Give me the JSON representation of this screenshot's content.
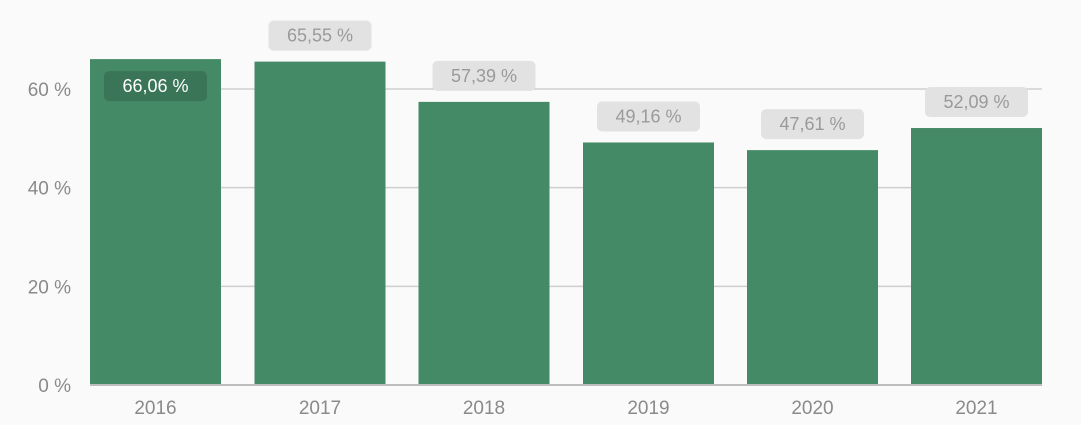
{
  "chart_data": {
    "type": "bar",
    "title": "",
    "xlabel": "",
    "ylabel": "",
    "categories": [
      "2016",
      "2017",
      "2018",
      "2019",
      "2020",
      "2021"
    ],
    "values": [
      66.06,
      65.55,
      57.39,
      49.16,
      47.61,
      52.09
    ],
    "value_labels": [
      "66,06 %",
      "65,55 %",
      "57,39 %",
      "49,16 %",
      "47,61 %",
      "52,09 %"
    ],
    "ylim": [
      0,
      70
    ],
    "yticks": [
      0,
      20,
      40,
      60
    ],
    "ytick_labels": [
      "0 %",
      "20 %",
      "40 %",
      "60 %"
    ],
    "grid": true,
    "colors": {
      "bar": "#458a66",
      "grid": "#cfcfcf",
      "axis": "#bdbdbd",
      "tick_text": "#8a8a8a",
      "label_bg": "#e2e2e2",
      "label_text": "#9a9a9a",
      "label_inside_bg": "#3a7557",
      "label_inside_text": "#ffffff"
    }
  }
}
